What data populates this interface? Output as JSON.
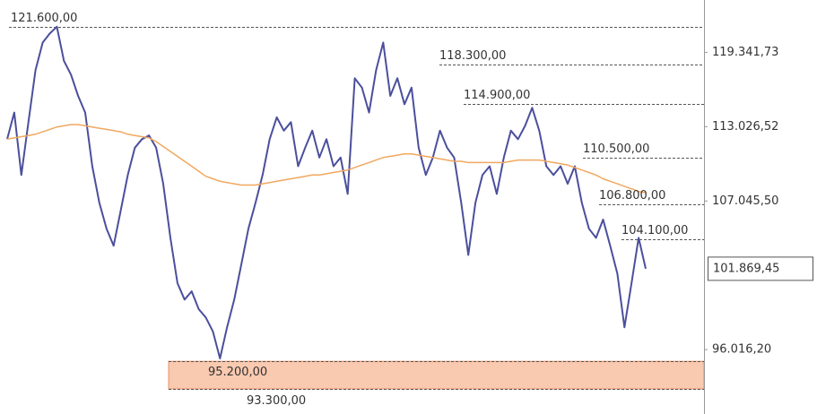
{
  "chart_data": {
    "type": "line",
    "categories": [
      null,
      null,
      null,
      null,
      null,
      null,
      null,
      null,
      null,
      null,
      null,
      null,
      null,
      null,
      null,
      null,
      null,
      null,
      null,
      null,
      null,
      null,
      null,
      null,
      null,
      null,
      null,
      null,
      null,
      null,
      null,
      null,
      null,
      null,
      null,
      null,
      null,
      null,
      null,
      null,
      null,
      null,
      null,
      null,
      null,
      null,
      null,
      null,
      null,
      null,
      null,
      null,
      null,
      null,
      null,
      null,
      null,
      null,
      null,
      null,
      null,
      null,
      null,
      null,
      null,
      null,
      null,
      null,
      null,
      null,
      null,
      null,
      null,
      null,
      null,
      null,
      null,
      null,
      null,
      null,
      null,
      null,
      null,
      null,
      null,
      null,
      null,
      null,
      null,
      null,
      null
    ],
    "series": [
      {
        "color": "#4b4f9c",
        "values": [
          112000,
          114200,
          109100,
          113400,
          117800,
          120200,
          121000,
          121600,
          118600,
          117400,
          115600,
          114200,
          109800,
          106900,
          104900,
          103600,
          106300,
          109100,
          111300,
          112000,
          112300,
          111300,
          108400,
          104200,
          100800,
          99600,
          100200,
          98900,
          98300,
          97300,
          95400,
          97600,
          99600,
          102200,
          104900,
          106900,
          109100,
          112000,
          113800,
          112700,
          113400,
          109800,
          111300,
          112700,
          110500,
          112000,
          109800,
          110500,
          107600,
          117100,
          116300,
          114200,
          117800,
          120200,
          115600,
          117100,
          114900,
          116300,
          111300,
          109100,
          110500,
          112700,
          111300,
          110500,
          106900,
          102900,
          106900,
          109100,
          109800,
          107600,
          110500,
          112700,
          112000,
          113100,
          114600,
          112700,
          109800,
          109100,
          109800,
          108400,
          109800,
          106900,
          104900,
          104200,
          105600,
          103600,
          101500,
          97600,
          100800,
          104200,
          101869.45
        ]
      },
      {
        "color": "#f0a860",
        "values": [
          112000,
          112100,
          112200,
          112300,
          112400,
          112600,
          112800,
          113000,
          113100,
          113200,
          113200,
          113100,
          113000,
          112900,
          112800,
          112700,
          112600,
          112400,
          112300,
          112200,
          112100,
          111800,
          111400,
          111000,
          110600,
          110200,
          109800,
          109400,
          109000,
          108800,
          108600,
          108500,
          108400,
          108300,
          108300,
          108300,
          108400,
          108500,
          108600,
          108700,
          108800,
          108900,
          109000,
          109100,
          109100,
          109200,
          109300,
          109400,
          109500,
          109700,
          109900,
          110100,
          110300,
          110500,
          110600,
          110700,
          110800,
          110800,
          110700,
          110600,
          110500,
          110400,
          110300,
          110200,
          110200,
          110100,
          110100,
          110100,
          110100,
          110100,
          110100,
          110200,
          110300,
          110300,
          110300,
          110300,
          110200,
          110100,
          110000,
          109900,
          109700,
          109500,
          109300,
          109100,
          108800,
          108600,
          108400,
          108200,
          108000,
          107800,
          107700
        ]
      }
    ],
    "log_scale": true,
    "ylim": [
      91600,
      124000
    ],
    "yticks": [
      {
        "value": 119341.73,
        "label": "119.341,73"
      },
      {
        "value": 113026.52,
        "label": "113.026,52"
      },
      {
        "value": 107045.5,
        "label": "107.045,50"
      },
      {
        "value": 96016.2,
        "label": "96.016,20"
      }
    ],
    "current_price": {
      "value": 101869.45,
      "label": "101.869,45"
    },
    "levels": [
      {
        "value": 121600,
        "label": "121.600,00"
      },
      {
        "value": 118300,
        "label": "118.300,00"
      },
      {
        "value": 114900,
        "label": "114.900,00"
      },
      {
        "value": 110500,
        "label": "110.500,00"
      },
      {
        "value": 106800,
        "label": "106.800,00"
      },
      {
        "value": 104100,
        "label": "104.100,00"
      },
      {
        "value": 95200,
        "label": "95.200,00"
      },
      {
        "value": 93300,
        "label": "93.300,00"
      }
    ],
    "zone_color": "#f9c9b0"
  }
}
